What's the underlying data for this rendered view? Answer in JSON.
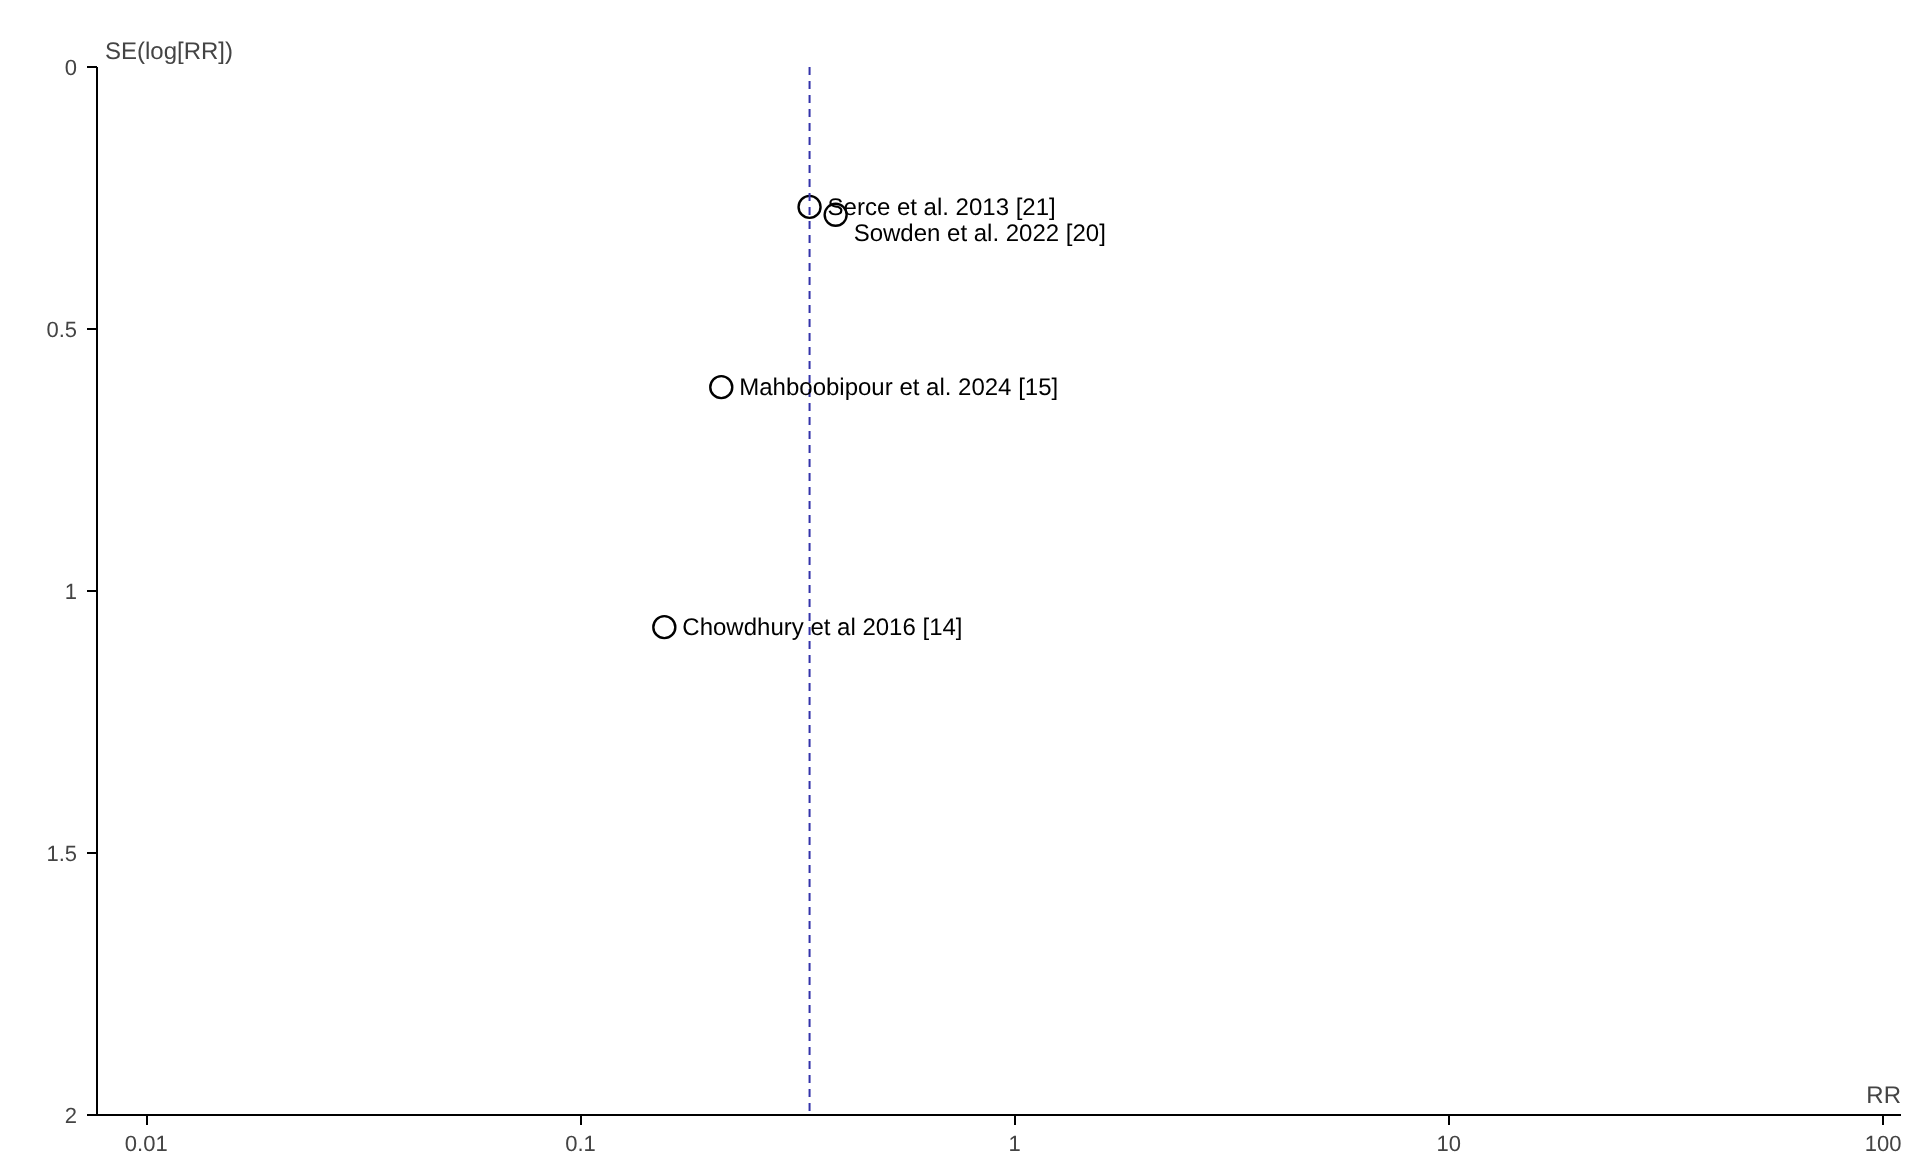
{
  "chart_data": {
    "type": "scatter",
    "xlabel": "RR",
    "ylabel": "SE(log[RR])",
    "x": [
      0.337,
      0.387,
      0.211,
      0.156
    ],
    "series": [
      {
        "color": "#000000",
        "values": [
          0.267,
          0.282,
          0.611,
          1.069
        ]
      }
    ],
    "marker": "circle",
    "log": "x",
    "xlim": [
      0.0077,
      110
    ],
    "xticks": [
      0.01,
      0.1,
      1,
      10,
      100
    ],
    "ylim": [
      2,
      0
    ],
    "yticks": [
      0,
      0.5,
      1,
      1.5,
      2
    ],
    "grid": false,
    "ref_lines": [
      {
        "axis": "x",
        "value": 0.337,
        "color": "#3333aa",
        "line_style": "dashed"
      }
    ],
    "annotations": [
      {
        "text": "Serce et al. 2013 [21]",
        "x": 0.337,
        "y": 0.267
      },
      {
        "text": "Sowden et al. 2022 [20]",
        "x": 0.387,
        "y": 0.282
      },
      {
        "text": "Mahboobipour et al. 2024 [15]",
        "x": 0.211,
        "y": 0.611
      },
      {
        "text": "Chowdhury et al 2016 [14]",
        "x": 0.156,
        "y": 1.069
      }
    ]
  }
}
